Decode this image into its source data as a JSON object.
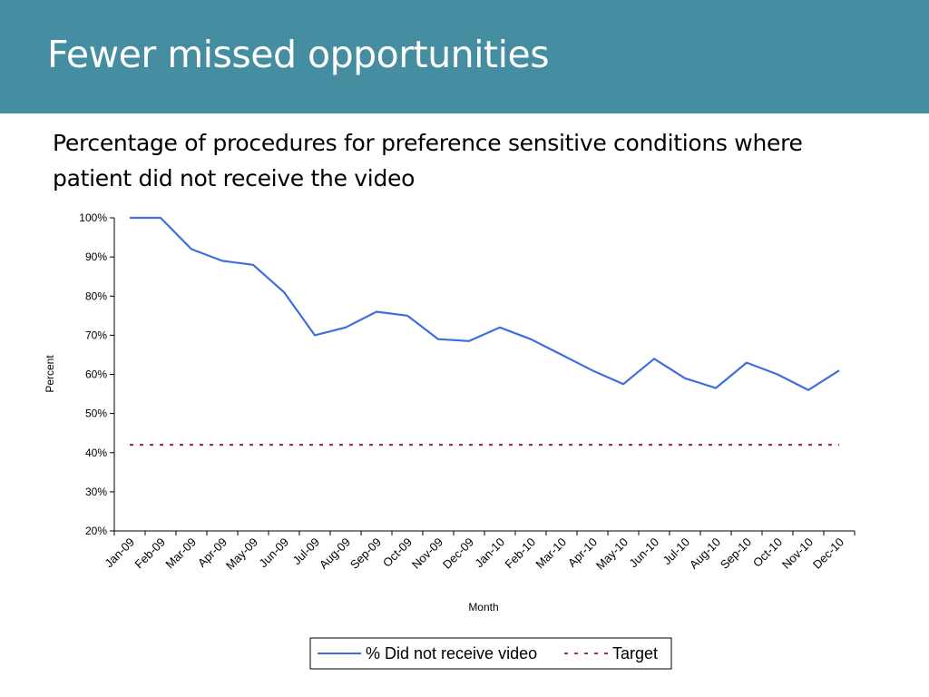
{
  "slide": {
    "title": "Fewer missed opportunities",
    "subtitle": "Percentage of procedures for preference sensitive conditions where patient did not receive the video"
  },
  "colors": {
    "header_bg": "#458da0",
    "series_line": "#3d6ee0",
    "target_line": "#a0325a"
  },
  "chart_data": {
    "type": "line",
    "xlabel": "Month",
    "ylabel": "Percent",
    "ylim": [
      20,
      100
    ],
    "yticks": [
      "20%",
      "30%",
      "40%",
      "50%",
      "60%",
      "70%",
      "80%",
      "90%",
      "100%"
    ],
    "categories": [
      "Jan-09",
      "Feb-09",
      "Mar-09",
      "Apr-09",
      "May-09",
      "Jun-09",
      "Jul-09",
      "Aug-09",
      "Sep-09",
      "Oct-09",
      "Nov-09",
      "Dec-09",
      "Jan-10",
      "Feb-10",
      "Mar-10",
      "Apr-10",
      "May-10",
      "Jun-10",
      "Jul-10",
      "Aug-10",
      "Sep-10",
      "Oct-10",
      "Nov-10",
      "Dec-10"
    ],
    "series": [
      {
        "name": "% Did not receive video",
        "values": [
          100,
          100,
          92,
          89,
          88,
          81,
          70,
          72,
          76,
          75,
          69,
          68.5,
          72,
          69,
          65,
          61,
          57.5,
          64,
          59,
          56.5,
          63,
          60,
          56,
          61
        ]
      },
      {
        "name": "Target",
        "values": [
          42,
          42,
          42,
          42,
          42,
          42,
          42,
          42,
          42,
          42,
          42,
          42,
          42,
          42,
          42,
          42,
          42,
          42,
          42,
          42,
          42,
          42,
          42,
          42
        ]
      }
    ],
    "legend": "bottom-center",
    "grid": false
  }
}
